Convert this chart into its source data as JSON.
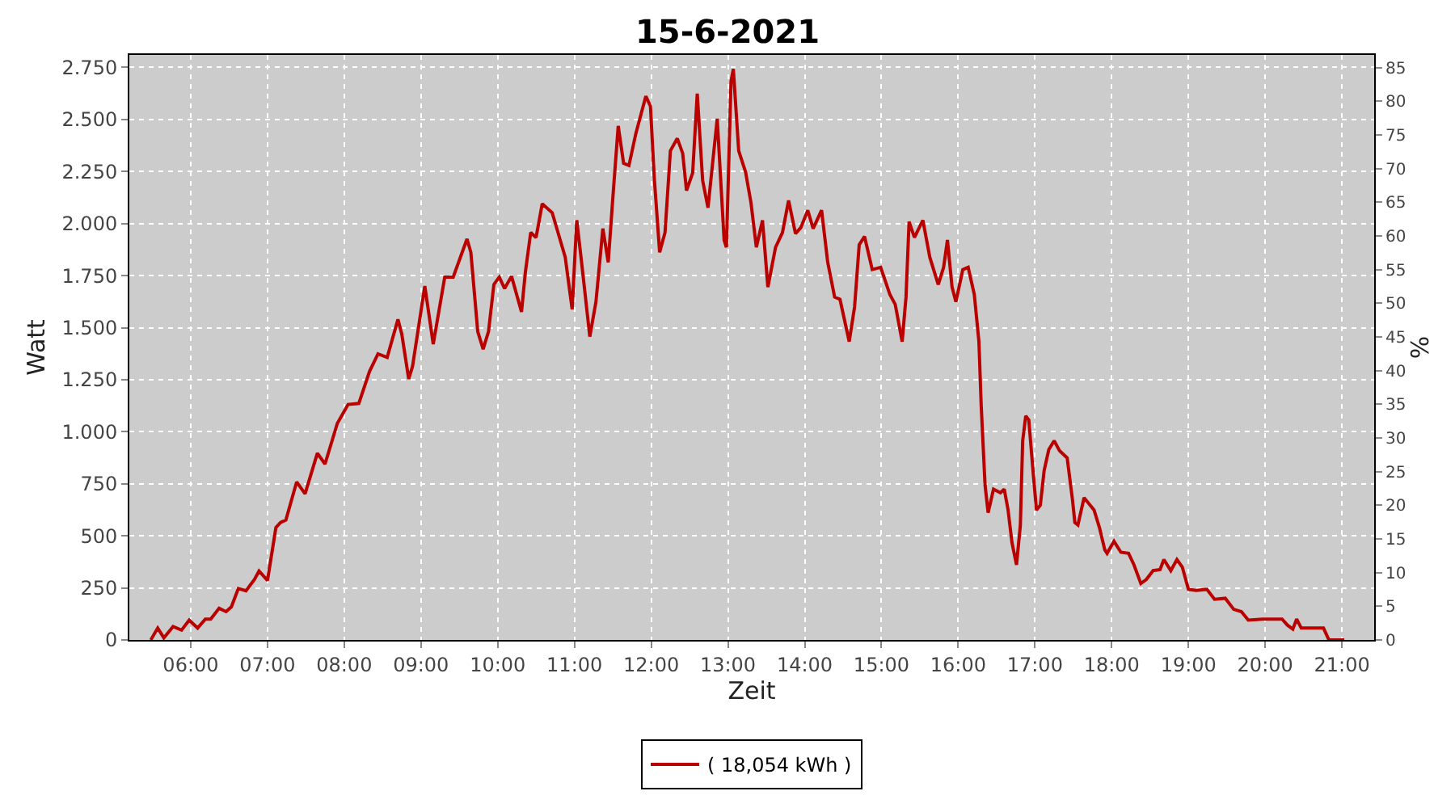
{
  "chart_data": {
    "type": "line",
    "title": "15-6-2021",
    "xlabel": "Zeit",
    "ylabel": "Watt",
    "y2label": "%",
    "xlim": [
      5.2,
      21.42
    ],
    "xticks": [
      {
        "value": 6,
        "label": "06:00"
      },
      {
        "value": 7,
        "label": "07:00"
      },
      {
        "value": 8,
        "label": "08:00"
      },
      {
        "value": 9,
        "label": "09:00"
      },
      {
        "value": 10,
        "label": "10:00"
      },
      {
        "value": 11,
        "label": "11:00"
      },
      {
        "value": 12,
        "label": "12:00"
      },
      {
        "value": 13,
        "label": "13:00"
      },
      {
        "value": 14,
        "label": "14:00"
      },
      {
        "value": 15,
        "label": "15:00"
      },
      {
        "value": 16,
        "label": "16:00"
      },
      {
        "value": 17,
        "label": "17:00"
      },
      {
        "value": 18,
        "label": "18:00"
      },
      {
        "value": 19,
        "label": "19:00"
      },
      {
        "value": 20,
        "label": "20:00"
      },
      {
        "value": 21,
        "label": "21:00"
      }
    ],
    "ylim": [
      0,
      2810
    ],
    "yticks": [
      0,
      250,
      500,
      750,
      {
        "value": 1000,
        "label": "1.000"
      },
      {
        "value": 1250,
        "label": "1.250"
      },
      {
        "value": 1500,
        "label": "1.500"
      },
      {
        "value": 1750,
        "label": "1.750"
      },
      {
        "value": 2000,
        "label": "2.000"
      },
      {
        "value": 2250,
        "label": "2.250"
      },
      {
        "value": 2500,
        "label": "2.500"
      },
      {
        "value": 2750,
        "label": "2.750"
      }
    ],
    "y2lim": [
      0,
      86.9
    ],
    "y2ticks": [
      0,
      5,
      10,
      15,
      20,
      25,
      30,
      35,
      40,
      45,
      50,
      55,
      60,
      65,
      70,
      75,
      80,
      85
    ],
    "grid": true,
    "legend": "bottom",
    "marker": "none",
    "line_style": "solid",
    "series": [
      {
        "name": "( 18,054 kWh )",
        "color": "#bb0000",
        "x": [
          5.48,
          5.57,
          5.65,
          5.77,
          5.88,
          5.98,
          6.09,
          6.19,
          6.26,
          6.37,
          6.46,
          6.53,
          6.62,
          6.72,
          6.83,
          6.89,
          7.0,
          7.11,
          7.17,
          7.24,
          7.38,
          7.49,
          7.65,
          7.75,
          7.91,
          8.05,
          8.19,
          8.33,
          8.44,
          8.56,
          8.7,
          8.75,
          8.84,
          8.89,
          9.05,
          9.16,
          9.31,
          9.42,
          9.6,
          9.65,
          9.74,
          9.81,
          9.88,
          9.95,
          10.02,
          10.09,
          10.18,
          10.31,
          10.36,
          10.43,
          10.5,
          10.58,
          10.71,
          10.88,
          10.97,
          11.03,
          11.1,
          11.2,
          11.28,
          11.37,
          11.44,
          11.5,
          11.57,
          11.64,
          11.71,
          11.8,
          11.93,
          11.99,
          12.04,
          12.11,
          12.18,
          12.25,
          12.34,
          12.41,
          12.46,
          12.54,
          12.6,
          12.67,
          12.74,
          12.86,
          12.95,
          12.98,
          13.04,
          13.07,
          13.14,
          13.23,
          13.3,
          13.37,
          13.45,
          13.52,
          13.62,
          13.71,
          13.79,
          13.88,
          13.95,
          14.04,
          14.11,
          14.22,
          14.3,
          14.39,
          14.46,
          14.58,
          14.65,
          14.71,
          14.78,
          14.88,
          14.99,
          15.11,
          15.18,
          15.27,
          15.32,
          15.36,
          15.43,
          15.54,
          15.63,
          15.74,
          15.81,
          15.86,
          15.92,
          15.97,
          16.06,
          16.13,
          16.21,
          16.27,
          16.3,
          16.35,
          16.39,
          16.46,
          16.55,
          16.6,
          16.65,
          16.7,
          16.76,
          16.81,
          16.84,
          16.88,
          16.92,
          16.98,
          17.02,
          17.07,
          17.12,
          17.18,
          17.25,
          17.32,
          17.42,
          17.49,
          17.52,
          17.56,
          17.64,
          17.77,
          17.84,
          17.91,
          17.94,
          18.03,
          18.12,
          18.22,
          18.29,
          18.38,
          18.45,
          18.54,
          18.63,
          18.68,
          18.77,
          18.85,
          18.92,
          19.0,
          19.1,
          19.24,
          19.34,
          19.48,
          19.59,
          19.69,
          19.78,
          19.97,
          20.22,
          20.29,
          20.36,
          20.41,
          20.47,
          20.57,
          20.76,
          20.83,
          21.03
        ],
        "values": [
          0,
          57,
          10,
          64,
          47,
          95,
          57,
          100,
          100,
          152,
          136,
          159,
          247,
          236,
          290,
          331,
          286,
          540,
          564,
          576,
          759,
          702,
          897,
          845,
          1040,
          1131,
          1136,
          1290,
          1374,
          1357,
          1540,
          1469,
          1254,
          1314,
          1700,
          1421,
          1743,
          1743,
          1926,
          1862,
          1481,
          1397,
          1481,
          1707,
          1743,
          1688,
          1747,
          1576,
          1766,
          1957,
          1933,
          2095,
          2052,
          1838,
          1588,
          2016,
          1790,
          1457,
          1624,
          1976,
          1814,
          2124,
          2469,
          2290,
          2279,
          2433,
          2612,
          2564,
          2219,
          1862,
          1957,
          2350,
          2409,
          2338,
          2159,
          2243,
          2624,
          2207,
          2076,
          2504,
          1921,
          1886,
          2683,
          2743,
          2350,
          2247,
          2100,
          1886,
          2016,
          1695,
          1886,
          1957,
          2111,
          1952,
          1981,
          2064,
          1976,
          2064,
          1814,
          1647,
          1636,
          1433,
          1600,
          1898,
          1938,
          1779,
          1790,
          1659,
          1611,
          1433,
          1647,
          2009,
          1933,
          2016,
          1838,
          1707,
          1790,
          1921,
          1695,
          1624,
          1779,
          1790,
          1659,
          1433,
          1124,
          743,
          611,
          724,
          707,
          724,
          624,
          469,
          361,
          552,
          957,
          1076,
          1057,
          790,
          624,
          647,
          814,
          914,
          957,
          909,
          874,
          671,
          564,
          552,
          683,
          624,
          540,
          433,
          416,
          474,
          421,
          416,
          361,
          271,
          290,
          333,
          338,
          386,
          333,
          386,
          350,
          243,
          238,
          243,
          195,
          200,
          147,
          136,
          95,
          100,
          100,
          71,
          52,
          100,
          57,
          57,
          57,
          0,
          0
        ]
      }
    ]
  }
}
